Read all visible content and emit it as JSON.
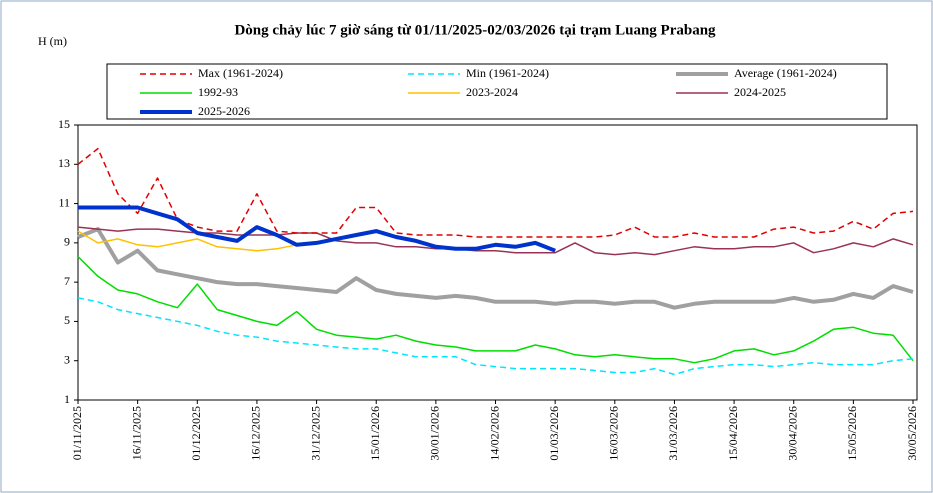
{
  "chart_data": {
    "type": "line",
    "title": "Dòng chảy lúc 7 giờ sáng từ 01/11/2025-02/03/2026 tại trạm Luang Prabang",
    "y_label": "H (m)",
    "x": [
      "01/11/2025",
      "06/11/2025",
      "11/11/2025",
      "16/11/2025",
      "21/11/2025",
      "26/11/2025",
      "01/12/2025",
      "06/12/2025",
      "11/12/2025",
      "16/12/2025",
      "21/12/2025",
      "26/12/2025",
      "31/12/2025",
      "05/01/2026",
      "10/01/2026",
      "15/01/2026",
      "20/01/2026",
      "25/01/2026",
      "30/01/2026",
      "04/02/2026",
      "09/02/2026",
      "14/02/2026",
      "19/02/2026",
      "24/02/2026",
      "01/03/2026",
      "06/03/2026",
      "11/03/2026",
      "16/03/2026",
      "21/03/2026",
      "26/03/2026",
      "31/03/2026",
      "05/04/2026",
      "10/04/2026",
      "15/04/2026",
      "20/04/2026",
      "25/04/2026",
      "30/04/2026",
      "05/05/2026",
      "10/05/2026",
      "15/05/2026",
      "20/05/2026",
      "25/05/2026",
      "30/05/2026"
    ],
    "xlim": [
      "01/11/2025",
      "31/05/2026"
    ],
    "xticks": [
      "01/11/2025",
      "16/11/2025",
      "01/12/2025",
      "16/12/2025",
      "31/12/2025",
      "15/01/2026",
      "30/01/2026",
      "14/02/2026",
      "01/03/2026",
      "16/03/2026",
      "31/03/2026",
      "15/04/2026",
      "30/04/2026",
      "15/05/2026",
      "30/05/2026"
    ],
    "ylim": [
      1,
      15
    ],
    "yticks": [
      1,
      3,
      5,
      7,
      9,
      11,
      13,
      15
    ],
    "series": [
      {
        "name": "Max (1961-2024)",
        "color": "#e00000",
        "dash": true,
        "values": [
          13,
          13.8,
          11.5,
          10.5,
          12.3,
          10.2,
          9.8,
          9.6,
          9.6,
          11.5,
          9.6,
          9.5,
          9.5,
          9.5,
          10.8,
          10.8,
          9.5,
          9.4,
          9.4,
          9.4,
          9.3,
          9.3,
          9.3,
          9.3,
          9.3,
          9.3,
          9.3,
          9.4,
          9.8,
          9.3,
          9.3,
          9.5,
          9.3,
          9.3,
          9.3,
          9.7,
          9.8,
          9.5,
          9.6,
          10.1,
          9.7,
          10.5,
          10.6
        ]
      },
      {
        "name": "Min (1961-2024)",
        "color": "#00e5ff",
        "dash": true,
        "values": [
          6.2,
          6.0,
          5.6,
          5.4,
          5.2,
          5.0,
          4.8,
          4.5,
          4.3,
          4.2,
          4.0,
          3.9,
          3.8,
          3.7,
          3.6,
          3.6,
          3.4,
          3.2,
          3.2,
          3.2,
          2.8,
          2.7,
          2.6,
          2.6,
          2.6,
          2.6,
          2.5,
          2.4,
          2.4,
          2.6,
          2.3,
          2.6,
          2.7,
          2.8,
          2.8,
          2.7,
          2.8,
          2.9,
          2.8,
          2.8,
          2.8,
          3.0,
          3.1
        ]
      },
      {
        "name": "Average (1961-2024)",
        "color": "#a0a0a0",
        "bold": true,
        "values": [
          9.3,
          9.7,
          8.0,
          8.6,
          7.6,
          7.4,
          7.2,
          7.0,
          6.9,
          6.9,
          6.8,
          6.7,
          6.6,
          6.5,
          7.2,
          6.6,
          6.4,
          6.3,
          6.2,
          6.3,
          6.2,
          6.0,
          6.0,
          6.0,
          5.9,
          6.0,
          6.0,
          5.9,
          6.0,
          6.0,
          5.7,
          5.9,
          6.0,
          6.0,
          6.0,
          6.0,
          6.2,
          6.0,
          6.1,
          6.4,
          6.2,
          6.8,
          6.5
        ]
      },
      {
        "name": "1992-93",
        "color": "#00dd00",
        "values": [
          8.3,
          7.3,
          6.6,
          6.4,
          6.0,
          5.7,
          6.9,
          5.6,
          5.3,
          5.0,
          4.8,
          5.5,
          4.6,
          4.3,
          4.2,
          4.1,
          4.3,
          4.0,
          3.8,
          3.7,
          3.5,
          3.5,
          3.5,
          3.8,
          3.6,
          3.3,
          3.2,
          3.3,
          3.2,
          3.1,
          3.1,
          2.9,
          3.1,
          3.5,
          3.6,
          3.3,
          3.5,
          4.0,
          4.6,
          4.7,
          4.4,
          4.3,
          3.0
        ]
      },
      {
        "name": "2023-2024",
        "color": "#ffc000",
        "values": [
          9.6,
          9.0,
          9.2,
          8.9,
          8.8,
          9.0,
          9.2,
          8.8,
          8.7,
          8.6,
          8.7,
          8.9,
          9.0,
          null,
          null,
          null,
          null,
          null,
          null,
          null,
          null,
          null,
          null,
          null,
          null,
          null,
          null,
          null,
          null,
          null,
          null,
          null,
          null,
          null,
          null,
          null,
          null,
          null,
          null,
          null,
          null,
          null,
          null
        ]
      },
      {
        "name": "2024-2025",
        "color": "#993355",
        "values": [
          9.8,
          9.7,
          9.6,
          9.7,
          9.7,
          9.6,
          9.5,
          9.5,
          9.4,
          9.4,
          9.4,
          9.5,
          9.5,
          9.1,
          9.0,
          9.0,
          8.8,
          8.8,
          8.7,
          8.7,
          8.6,
          8.6,
          8.5,
          8.5,
          8.5,
          9.0,
          8.5,
          8.4,
          8.5,
          8.4,
          8.6,
          8.8,
          8.7,
          8.7,
          8.8,
          8.8,
          9.0,
          8.5,
          8.7,
          9.0,
          8.8,
          9.2,
          8.9
        ]
      },
      {
        "name": "2025-2026",
        "color": "#0033cc",
        "bold": true,
        "values": [
          10.8,
          10.8,
          10.8,
          10.8,
          10.5,
          10.2,
          9.5,
          9.3,
          9.1,
          9.8,
          9.4,
          8.9,
          9.0,
          9.2,
          9.4,
          9.6,
          9.3,
          9.1,
          8.8,
          8.7,
          8.7,
          8.9,
          8.8,
          9.0,
          8.6,
          null,
          null,
          null,
          null,
          null,
          null,
          null,
          null,
          null,
          null,
          null,
          null,
          null,
          null,
          null,
          null,
          null,
          null
        ]
      }
    ]
  }
}
